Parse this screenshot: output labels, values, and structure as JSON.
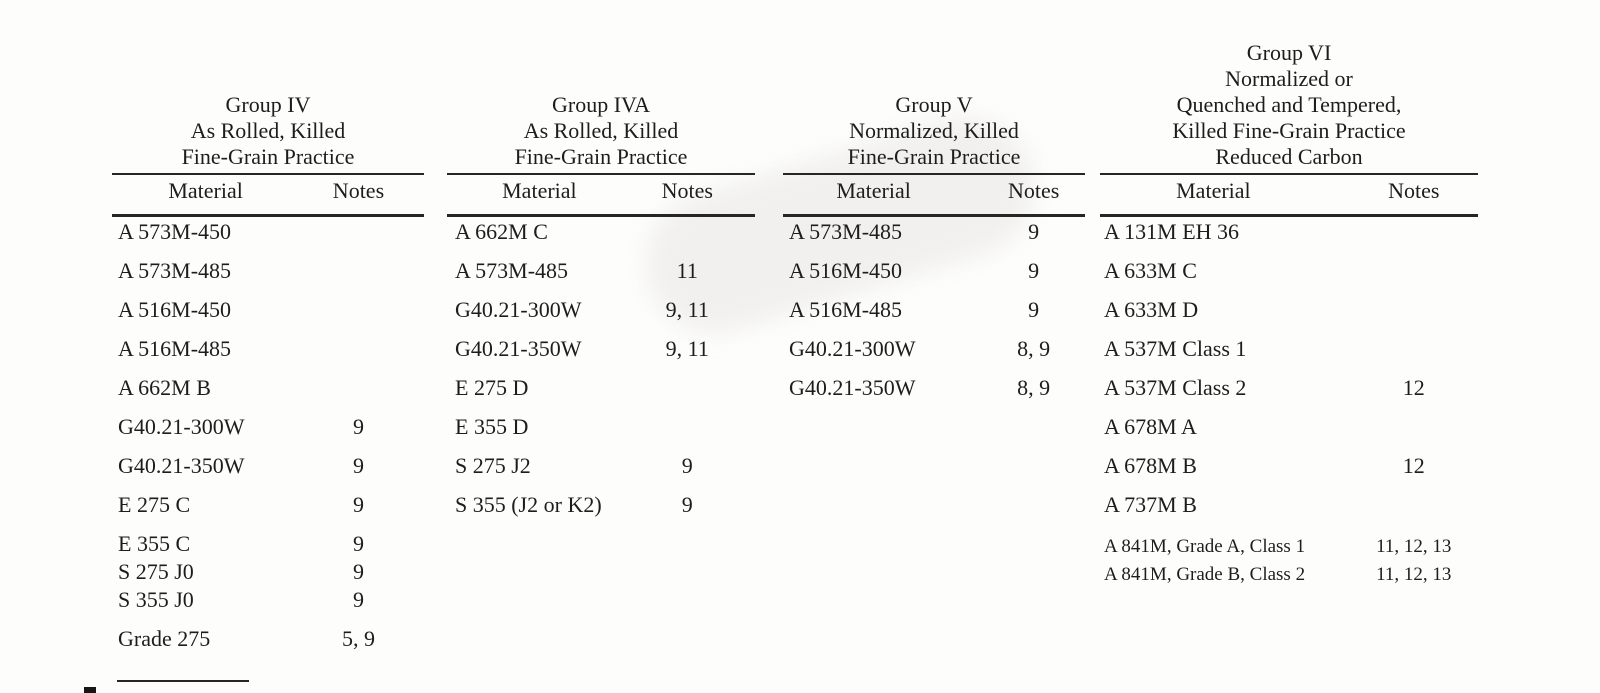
{
  "page": {
    "background": "#fdfdfc",
    "text_color": "#1d1d1d",
    "rule_color": "#262626"
  },
  "column_headers": {
    "material": "Material",
    "notes": "Notes"
  },
  "groups": [
    {
      "name": "Group IV",
      "title_lines": [
        "Group IV",
        "As Rolled, Killed",
        "Fine-Grain Practice"
      ],
      "rows": [
        {
          "material": "A 573M-450",
          "notes": ""
        },
        {
          "material": "A 573M-485",
          "notes": ""
        },
        {
          "material": "A 516M-450",
          "notes": ""
        },
        {
          "material": "A 516M-485",
          "notes": ""
        },
        {
          "material": "A 662M B",
          "notes": ""
        },
        {
          "material": "G40.21-300W",
          "notes": "9"
        },
        {
          "material": "G40.21-350W",
          "notes": "9"
        },
        {
          "material": "E 275 C",
          "notes": "9"
        },
        {
          "material": "E 355 C",
          "notes": "9"
        },
        {
          "material": "S 275 J0",
          "notes": "9"
        },
        {
          "material": "S 355 J0",
          "notes": "9"
        },
        {
          "material": "Grade 275",
          "notes": "5, 9"
        }
      ]
    },
    {
      "name": "Group IVA",
      "title_lines": [
        "Group IVA",
        "As Rolled, Killed",
        "Fine-Grain Practice"
      ],
      "rows": [
        {
          "material": "A 662M C",
          "notes": ""
        },
        {
          "material": "A 573M-485",
          "notes": "11"
        },
        {
          "material": "G40.21-300W",
          "notes": "9, 11"
        },
        {
          "material": "G40.21-350W",
          "notes": "9, 11"
        },
        {
          "material": "E 275 D",
          "notes": ""
        },
        {
          "material": "E 355 D",
          "notes": ""
        },
        {
          "material": "S 275 J2",
          "notes": "9"
        },
        {
          "material": "S 355 (J2 or K2)",
          "notes": "9"
        }
      ]
    },
    {
      "name": "Group V",
      "title_lines": [
        "Group V",
        "Normalized, Killed",
        "Fine-Grain Practice"
      ],
      "rows": [
        {
          "material": "A 573M-485",
          "notes": "9"
        },
        {
          "material": "A 516M-450",
          "notes": "9"
        },
        {
          "material": "A 516M-485",
          "notes": "9"
        },
        {
          "material": "G40.21-300W",
          "notes": "8, 9"
        },
        {
          "material": "G40.21-350W",
          "notes": "8, 9"
        }
      ]
    },
    {
      "name": "Group VI",
      "title_lines": [
        "Group VI",
        "Normalized or",
        "Quenched and Tempered,",
        "Killed Fine-Grain Practice",
        "Reduced Carbon"
      ],
      "rows": [
        {
          "material": "A 131M EH 36",
          "notes": ""
        },
        {
          "material": "A 633M C",
          "notes": ""
        },
        {
          "material": "A 633M D",
          "notes": ""
        },
        {
          "material": "A 537M Class 1",
          "notes": ""
        },
        {
          "material": "A 537M Class 2",
          "notes": "12"
        },
        {
          "material": "A 678M A",
          "notes": ""
        },
        {
          "material": "A 678M B",
          "notes": "12"
        },
        {
          "material": "A 737M B",
          "notes": ""
        },
        {
          "material": "A 841M, Grade A, Class 1",
          "notes": "11, 12, 13"
        },
        {
          "material": "A 841M, Grade B, Class 2",
          "notes": "11, 12, 13"
        }
      ]
    }
  ]
}
